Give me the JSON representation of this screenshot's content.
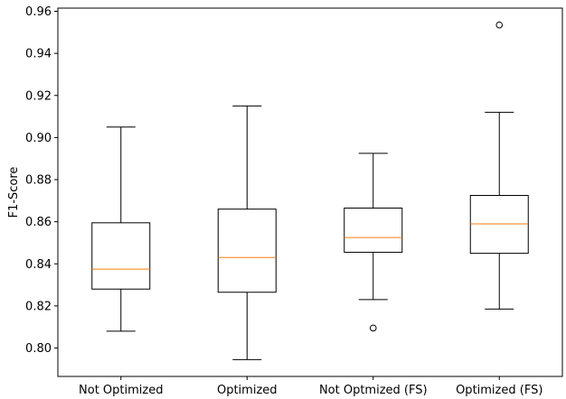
{
  "chart_data": {
    "type": "box",
    "title": "",
    "xlabel": "",
    "ylabel": "F1-Score",
    "ylim": [
      0.7865,
      0.9615
    ],
    "yticks": [
      "0.80",
      "0.82",
      "0.84",
      "0.86",
      "0.88",
      "0.90",
      "0.92",
      "0.94",
      "0.96"
    ],
    "ytick_values": [
      0.8,
      0.82,
      0.84,
      0.86,
      0.88,
      0.9,
      0.92,
      0.94,
      0.96
    ],
    "grid": false,
    "colors": {
      "box": "#000000",
      "median": "#ff7f0e",
      "outlier": "#000000"
    },
    "categories": [
      "Not Optimized",
      "Optimized",
      "Not Optmized (FS)",
      "Optimized (FS)"
    ],
    "boxes": [
      {
        "whisker_low": 0.808,
        "q1": 0.828,
        "median": 0.8375,
        "q3": 0.8595,
        "whisker_high": 0.905,
        "outliers": []
      },
      {
        "whisker_low": 0.7945,
        "q1": 0.8265,
        "median": 0.843,
        "q3": 0.866,
        "whisker_high": 0.915,
        "outliers": []
      },
      {
        "whisker_low": 0.823,
        "q1": 0.8455,
        "median": 0.8525,
        "q3": 0.8665,
        "whisker_high": 0.8925,
        "outliers": [
          0.8095
        ]
      },
      {
        "whisker_low": 0.8185,
        "q1": 0.845,
        "median": 0.859,
        "q3": 0.8725,
        "whisker_high": 0.912,
        "outliers": [
          0.9535
        ]
      }
    ]
  }
}
